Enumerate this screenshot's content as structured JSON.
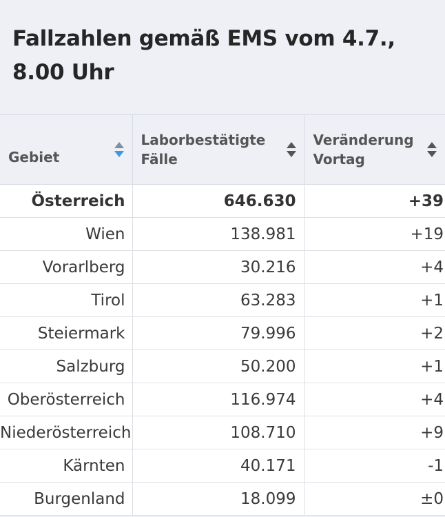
{
  "header": {
    "title_line1": "Fallzahlen gemäß EMS vom 4.7.,",
    "title_line2": "8.00 Uhr"
  },
  "table": {
    "columns": [
      {
        "label_line1": "Gebiet",
        "label_line2": "",
        "sort": "descending-active"
      },
      {
        "label_line1": "Laborbestätigte",
        "label_line2": "Fälle",
        "sort": "none"
      },
      {
        "label_line1": "Veränderung",
        "label_line2": "Vortag",
        "sort": "none"
      }
    ],
    "rows": [
      {
        "gebiet": "Österreich",
        "faelle": "646.630",
        "veraenderung": "+39"
      },
      {
        "gebiet": "Wien",
        "faelle": "138.981",
        "veraenderung": "+19"
      },
      {
        "gebiet": "Vorarlberg",
        "faelle": "30.216",
        "veraenderung": "+4"
      },
      {
        "gebiet": "Tirol",
        "faelle": "63.283",
        "veraenderung": "+1"
      },
      {
        "gebiet": "Steiermark",
        "faelle": "79.996",
        "veraenderung": "+2"
      },
      {
        "gebiet": "Salzburg",
        "faelle": "50.200",
        "veraenderung": "+1"
      },
      {
        "gebiet": "Oberösterreich",
        "faelle": "116.974",
        "veraenderung": "+4"
      },
      {
        "gebiet": "Niederösterreich",
        "faelle": "108.710",
        "veraenderung": "+9"
      },
      {
        "gebiet": "Kärnten",
        "faelle": "40.171",
        "veraenderung": "-1"
      },
      {
        "gebiet": "Burgenland",
        "faelle": "18.099",
        "veraenderung": "±0"
      }
    ]
  },
  "colors": {
    "background": "#eef0f5",
    "sort_active": "#3f97e8"
  },
  "icons": {
    "sort": "sort-updown-icon"
  }
}
